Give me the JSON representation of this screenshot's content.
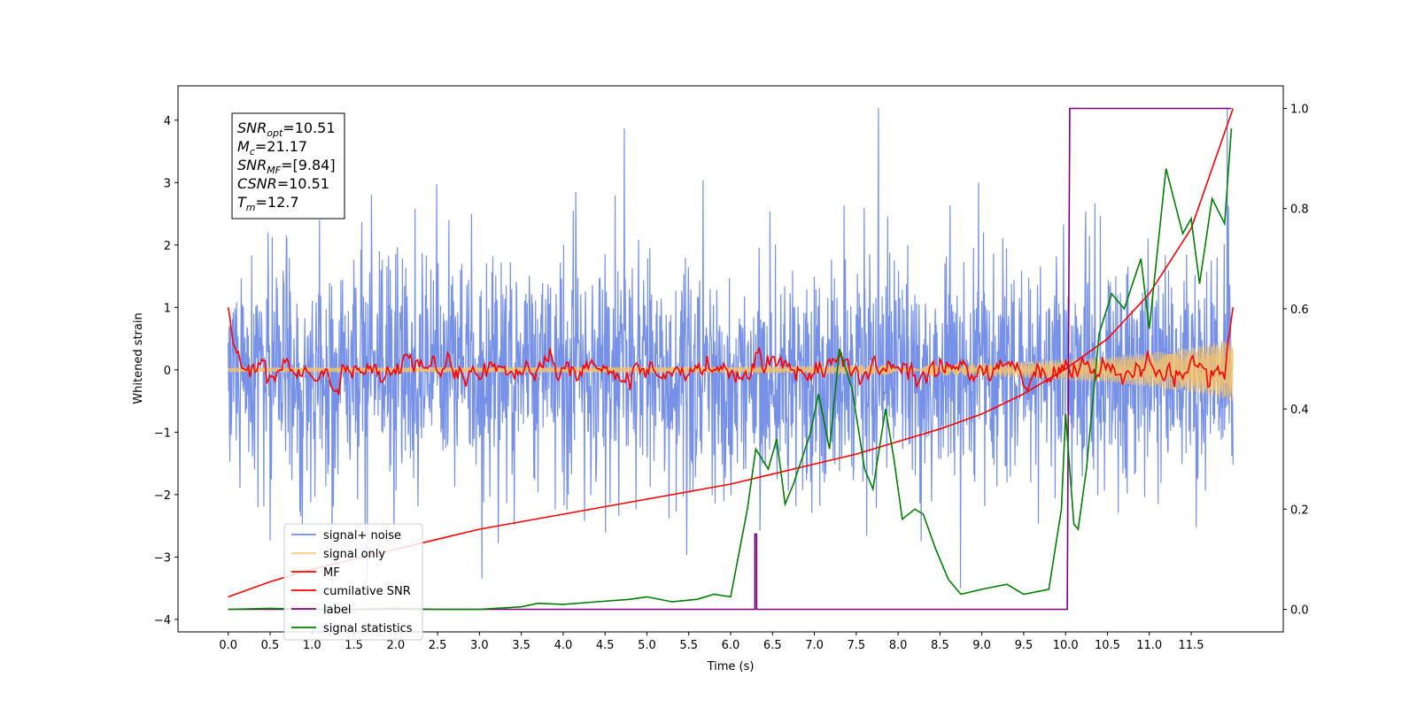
{
  "chart_data": {
    "type": "line",
    "xlabel": "Time (s)",
    "ylabel_left": "Whitened strain",
    "ylabel_right": "",
    "xlim": [
      -0.6,
      12.6
    ],
    "ylim_left": [
      -4.2,
      4.55
    ],
    "ylim_right": [
      -0.045,
      1.045
    ],
    "x_ticks": [
      "0.0",
      "0.5",
      "1.0",
      "1.5",
      "2.0",
      "2.5",
      "3.0",
      "3.5",
      "4.0",
      "4.5",
      "5.0",
      "5.5",
      "6.0",
      "6.5",
      "7.0",
      "7.5",
      "8.0",
      "8.5",
      "9.0",
      "9.5",
      "10.0",
      "10.5",
      "11.0",
      "11.5"
    ],
    "y_ticks_left": [
      "4",
      "3",
      "2",
      "1",
      "0",
      "−1",
      "−2",
      "−3",
      "−4"
    ],
    "y_ticks_right": [
      "1.0",
      "0.8",
      "0.6",
      "0.4",
      "0.2",
      "0.0"
    ],
    "grid": false,
    "legend_position": "lower-left",
    "annotation": [
      {
        "base": "SNR",
        "sub": "opt",
        "value": "=10.51"
      },
      {
        "base": "M",
        "sub": "c",
        "value": "=21.17"
      },
      {
        "base": "SNR",
        "sub": "MF",
        "value": "=[9.84]"
      },
      {
        "base": "CSNR",
        "sub": "",
        "value": "=10.51"
      },
      {
        "base": "T",
        "sub": "m",
        "value": "=12.7"
      }
    ],
    "series": [
      {
        "name": "signal+ noise",
        "axis": "left",
        "color": "#6f8be6",
        "style": "noise",
        "x_range": [
          0,
          12.0
        ],
        "amplitude_std": 0.9,
        "extreme_range": [
          -3.5,
          4.2
        ]
      },
      {
        "name": "signal only",
        "axis": "left",
        "color": "#f4c26b",
        "style": "chirp",
        "x_range": [
          0,
          12.0
        ],
        "envelope": {
          "x": [
            0,
            6,
            9,
            10.5,
            11.5,
            12.0
          ],
          "y": [
            0.03,
            0.05,
            0.1,
            0.2,
            0.35,
            0.5
          ]
        }
      },
      {
        "name": "MF",
        "axis": "left",
        "color": "#ff0000",
        "style": "mf",
        "x_range": [
          0,
          12.0
        ],
        "start_value": 1.0,
        "end_value": 1.0,
        "baseline": 0.0
      },
      {
        "name": "cumilative SNR",
        "axis": "right",
        "color": "#ff0000",
        "x": [
          0,
          0.5,
          1.0,
          1.5,
          2.0,
          2.5,
          3.0,
          3.5,
          4.0,
          4.5,
          5.0,
          5.5,
          6.0,
          6.5,
          7.0,
          7.5,
          8.0,
          8.5,
          9.0,
          9.5,
          10.0,
          10.5,
          11.0,
          11.5,
          12.0
        ],
        "y": [
          0.025,
          0.055,
          0.08,
          0.1,
          0.12,
          0.14,
          0.16,
          0.175,
          0.19,
          0.205,
          0.22,
          0.235,
          0.25,
          0.27,
          0.29,
          0.31,
          0.335,
          0.36,
          0.39,
          0.43,
          0.48,
          0.54,
          0.63,
          0.76,
          1.0
        ]
      },
      {
        "name": "label",
        "axis": "right",
        "color": "#800080",
        "x": [
          0,
          6.29,
          6.29,
          6.31,
          6.31,
          10.02,
          10.05,
          11.98
        ],
        "y": [
          0.0,
          0.0,
          0.15,
          0.15,
          0.0,
          0.0,
          1.0,
          1.0
        ]
      },
      {
        "name": "signal statistics",
        "axis": "right",
        "color": "#008000",
        "x": [
          0,
          0.5,
          1.0,
          1.5,
          2.0,
          2.5,
          3.0,
          3.5,
          3.7,
          4.0,
          4.4,
          4.8,
          5.0,
          5.3,
          5.6,
          5.8,
          6.0,
          6.2,
          6.3,
          6.45,
          6.55,
          6.65,
          6.75,
          6.95,
          7.05,
          7.18,
          7.3,
          7.45,
          7.6,
          7.7,
          7.85,
          7.95,
          8.05,
          8.2,
          8.3,
          8.45,
          8.6,
          8.75,
          9.0,
          9.3,
          9.5,
          9.8,
          9.95,
          10.0,
          10.1,
          10.15,
          10.25,
          10.4,
          10.55,
          10.7,
          10.9,
          11.0,
          11.2,
          11.4,
          11.5,
          11.6,
          11.75,
          11.9,
          11.98
        ],
        "y": [
          0.0,
          0.002,
          0.0,
          0.0,
          0.002,
          0.0,
          0.0,
          0.005,
          0.012,
          0.01,
          0.015,
          0.02,
          0.025,
          0.015,
          0.02,
          0.03,
          0.025,
          0.2,
          0.32,
          0.28,
          0.34,
          0.21,
          0.25,
          0.35,
          0.43,
          0.32,
          0.52,
          0.44,
          0.28,
          0.24,
          0.4,
          0.3,
          0.18,
          0.2,
          0.19,
          0.12,
          0.06,
          0.03,
          0.04,
          0.05,
          0.03,
          0.04,
          0.2,
          0.39,
          0.17,
          0.16,
          0.28,
          0.55,
          0.63,
          0.6,
          0.7,
          0.56,
          0.88,
          0.75,
          0.78,
          0.65,
          0.82,
          0.77,
          0.96
        ]
      }
    ]
  }
}
